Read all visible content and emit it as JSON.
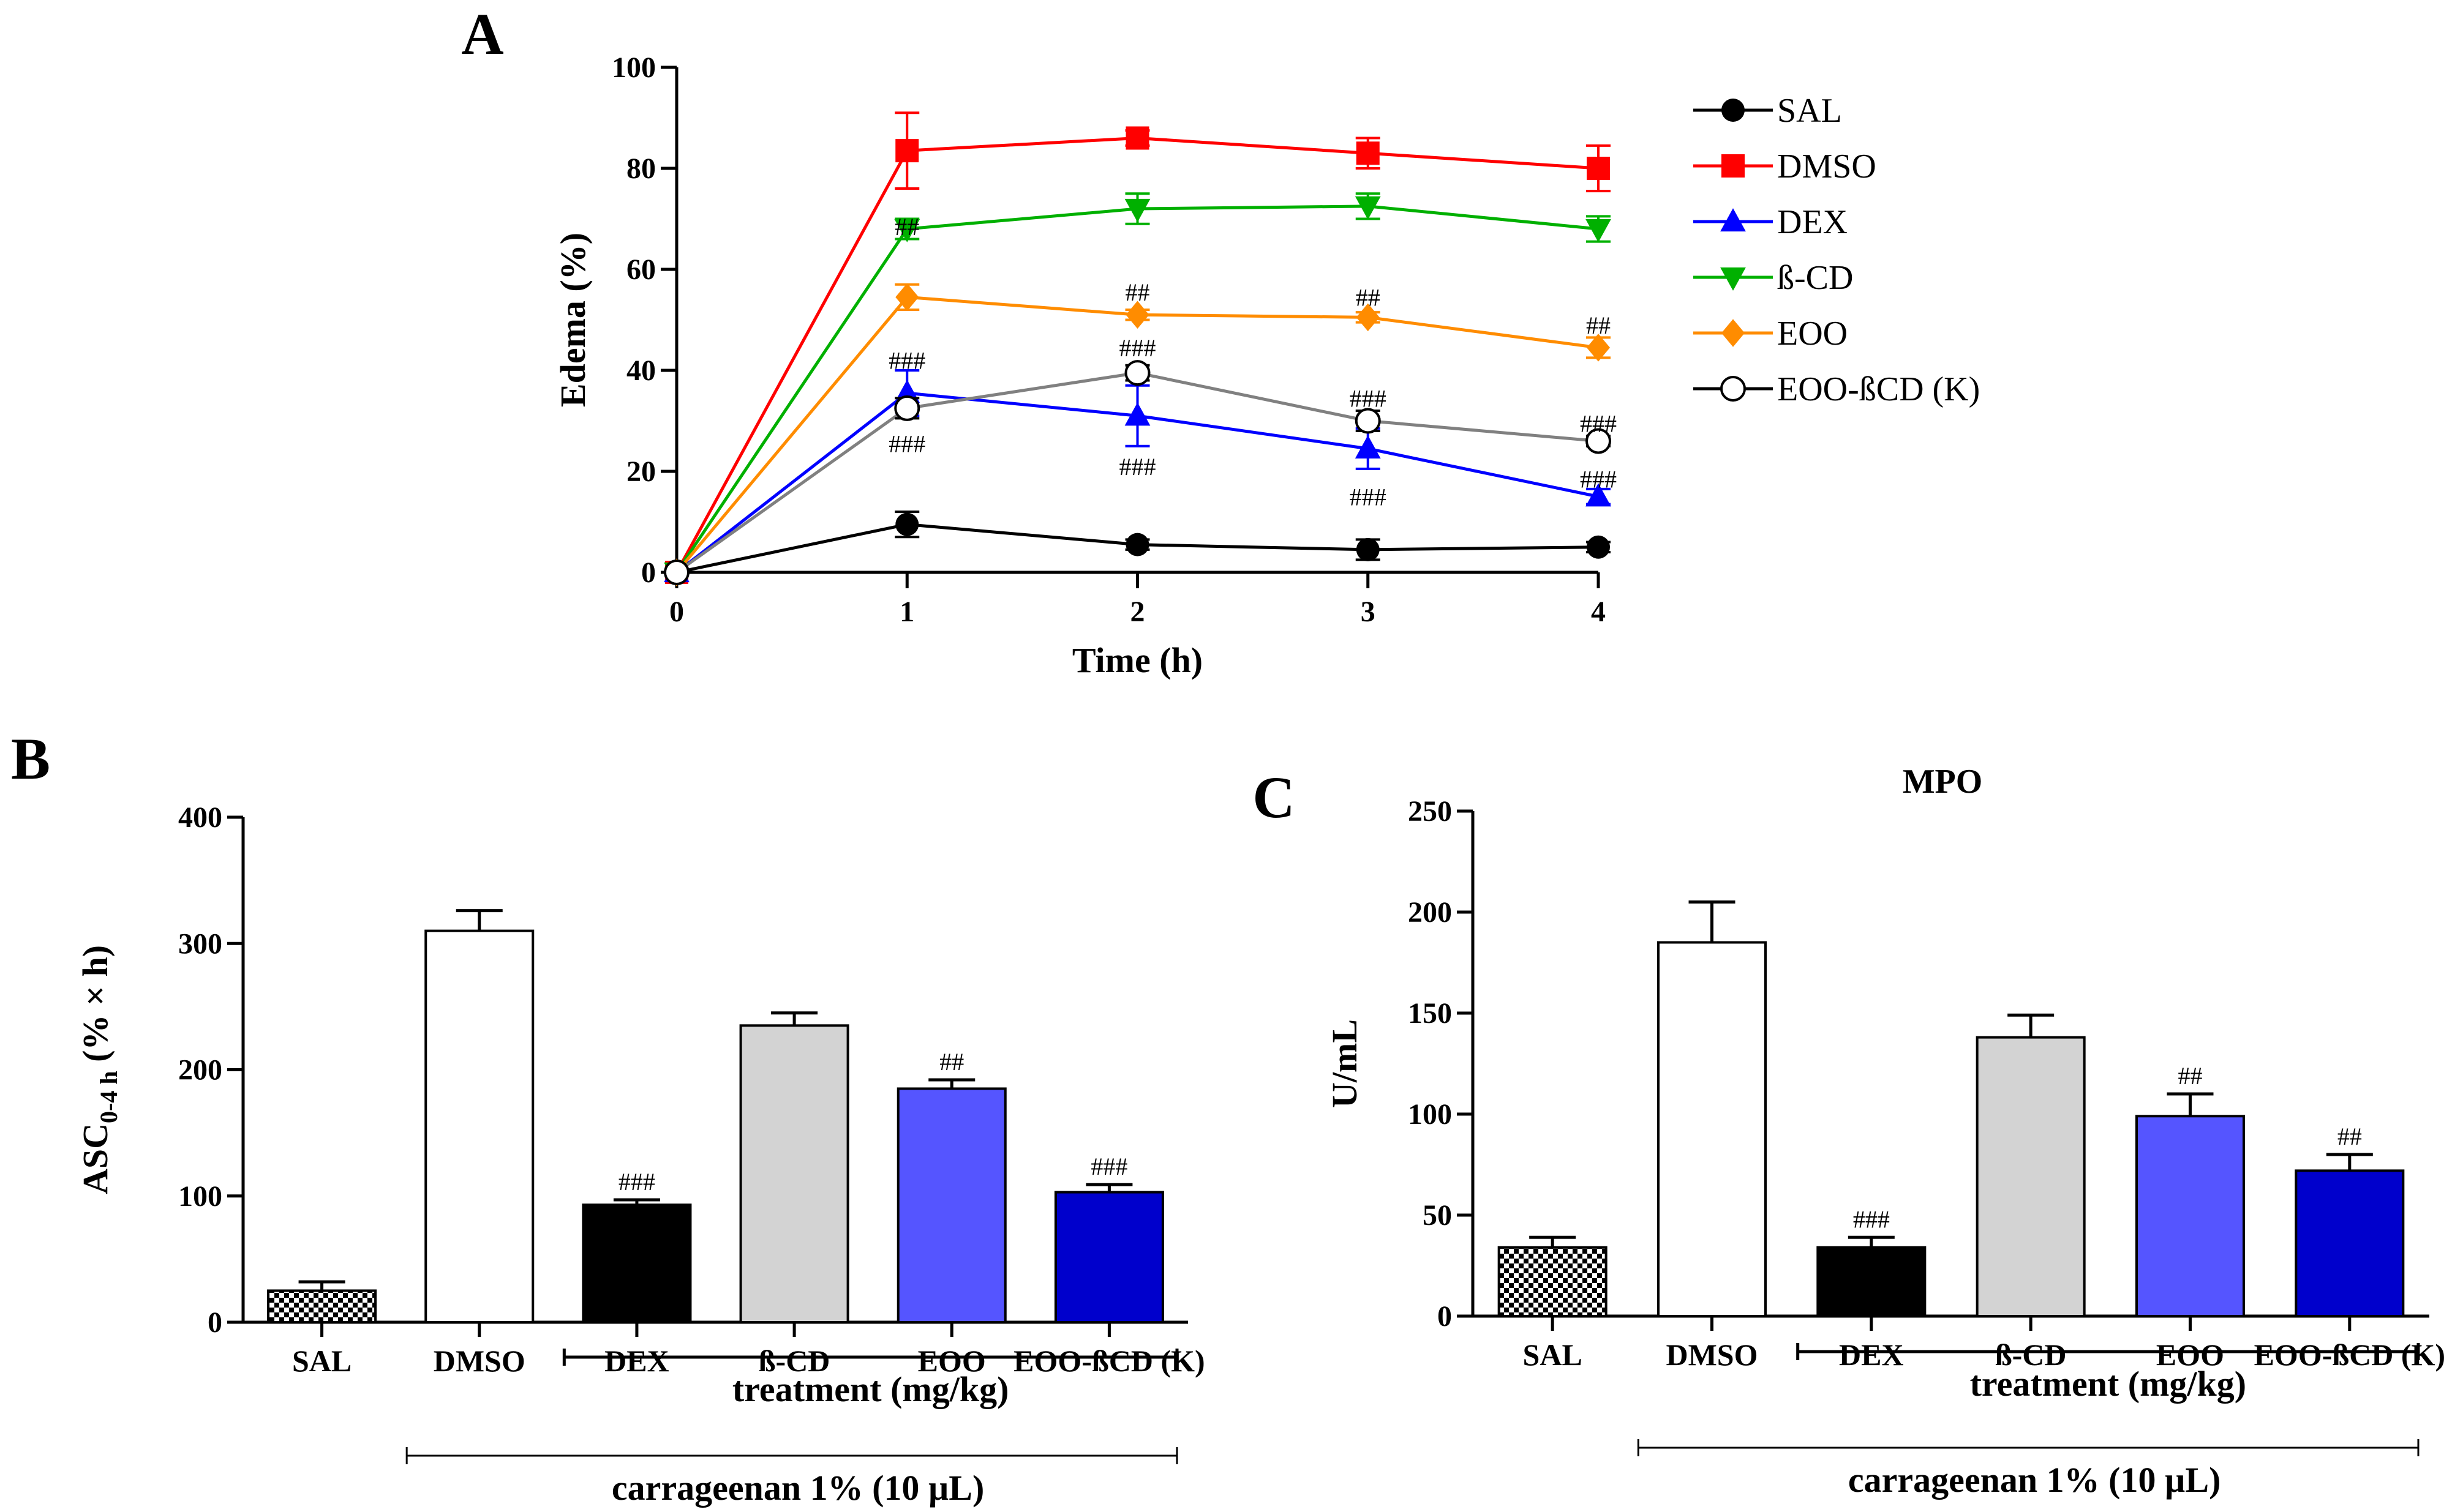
{
  "chart_data": [
    {
      "id": "A",
      "type": "line",
      "panel_label": "A",
      "xlabel": "Time (h)",
      "ylabel": "Edema (%)",
      "x": [
        0,
        1,
        2,
        3,
        4
      ],
      "x_ticks": [
        "0",
        "1",
        "2",
        "3",
        "4"
      ],
      "ylim": [
        0,
        100
      ],
      "y_ticks": [
        "0",
        "20",
        "40",
        "60",
        "80",
        "100"
      ],
      "series": [
        {
          "name": "SAL",
          "color": "#000000",
          "marker": "circle",
          "values": [
            0,
            9.5,
            5.5,
            4.5,
            5
          ],
          "errors": [
            0,
            2.5,
            1,
            2,
            1
          ]
        },
        {
          "name": "DMSO",
          "color": "#ff0000",
          "marker": "square",
          "values": [
            0,
            83.5,
            86,
            83,
            80
          ],
          "errors": [
            0,
            7.5,
            1.5,
            3,
            4.5
          ]
        },
        {
          "name": "DEX",
          "color": "#0000ff",
          "marker": "triangle-up",
          "values": [
            0,
            35.5,
            31,
            24.5,
            15
          ],
          "errors": [
            0,
            4.5,
            6,
            4,
            1.5
          ]
        },
        {
          "name": "ß-CD",
          "color": "#00b000",
          "marker": "triangle-down",
          "values": [
            0,
            68,
            72,
            72.5,
            68
          ],
          "errors": [
            0,
            2,
            3,
            2.5,
            2.5
          ]
        },
        {
          "name": "EOO",
          "color": "#ff8c00",
          "marker": "diamond",
          "values": [
            0,
            54.5,
            51,
            50.5,
            44.5
          ],
          "errors": [
            0,
            2.5,
            1,
            1,
            2
          ]
        },
        {
          "name": "EOO-ßCD (K)",
          "color": "#808080",
          "marker": "open-circle",
          "values": [
            0,
            32.5,
            39.5,
            30,
            26
          ],
          "errors": [
            0,
            2,
            1.5,
            2,
            1
          ]
        }
      ],
      "annotations": [
        {
          "text": "##",
          "x": 1,
          "y": 68.5
        },
        {
          "text": "###",
          "x": 1,
          "y": 42
        },
        {
          "text": "###",
          "x": 1,
          "y": 25.5
        },
        {
          "text": "##",
          "x": 2,
          "y": 55.5
        },
        {
          "text": "###",
          "x": 2,
          "y": 44.5
        },
        {
          "text": "###",
          "x": 2,
          "y": 21
        },
        {
          "text": "##",
          "x": 3,
          "y": 54.5
        },
        {
          "text": "###",
          "x": 3,
          "y": 34.5
        },
        {
          "text": "###",
          "x": 3,
          "y": 15
        },
        {
          "text": "##",
          "x": 4,
          "y": 49
        },
        {
          "text": "###",
          "x": 4,
          "y": 29.5
        },
        {
          "text": "###",
          "x": 4,
          "y": 18.5
        }
      ]
    },
    {
      "id": "B",
      "type": "bar",
      "panel_label": "B",
      "ylabel_main": "ASC",
      "ylabel_sub": "0-4 h",
      "ylabel_rest": " (% × h)",
      "categories": [
        "SAL",
        "DMSO",
        "DEX",
        "ß-CD",
        "EOO",
        "EOO-ßCD (K)"
      ],
      "values": [
        25,
        310,
        93,
        235,
        185,
        103
      ],
      "errors": [
        7,
        16,
        4,
        10,
        7,
        6
      ],
      "fills": [
        "checker",
        "#ffffff",
        "#000000",
        "#d3d3d3",
        "#5555ff",
        "#0000cc"
      ],
      "significance": [
        "",
        "",
        "###",
        "",
        "##",
        "###"
      ],
      "ylim": [
        0,
        400
      ],
      "y_ticks": [
        "0",
        "100",
        "200",
        "300",
        "400"
      ],
      "treatment_label": "treatment (mg/kg)",
      "carrageenan_label": "carrageenan 1% (10 µL)"
    },
    {
      "id": "C",
      "type": "bar",
      "panel_label": "C",
      "title": "MPO",
      "ylabel": "U/mL",
      "categories": [
        "SAL",
        "DMSO",
        "DEX",
        "ß-CD",
        "EOO",
        "EOO-ßCD (K)"
      ],
      "values": [
        34,
        185,
        34,
        138,
        99,
        72
      ],
      "errors": [
        5,
        20,
        5,
        11,
        11,
        8
      ],
      "fills": [
        "checker",
        "#ffffff",
        "#000000",
        "#d3d3d3",
        "#5555ff",
        "#0000cc"
      ],
      "significance": [
        "",
        "",
        "###",
        "",
        "##",
        "##"
      ],
      "ylim": [
        0,
        250
      ],
      "y_ticks": [
        "0",
        "50",
        "100",
        "150",
        "200",
        "250"
      ],
      "treatment_label": "treatment (mg/kg)",
      "carrageenan_label": "carrageenan 1% (10 µL)"
    }
  ]
}
